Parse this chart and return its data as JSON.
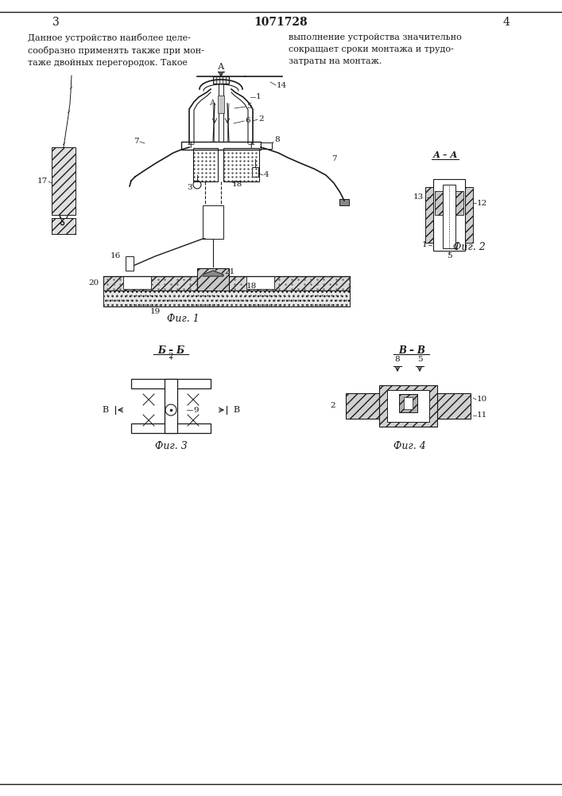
{
  "page_number_left": "3",
  "page_number_center": "1071728",
  "page_number_right": "4",
  "text_left": "Данное устройство наиболее целе-\nсообразно применять также при мон-\nтаже двойных перегородок. Такое",
  "text_right": "выполнение устройства значительно\nсокращает сроки монтажа и трудо-\nзатраты на монтаж.",
  "fig1_label": "Фиг. 1",
  "fig2_label": "Фиг. 2",
  "fig3_label": "Фиг. 3",
  "fig4_label": "Фиг. 4",
  "bg_color": "#ffffff",
  "line_color": "#1a1a1a",
  "section_aa": "А – А",
  "section_bb": "Б – Б",
  "section_vv": "В – В"
}
